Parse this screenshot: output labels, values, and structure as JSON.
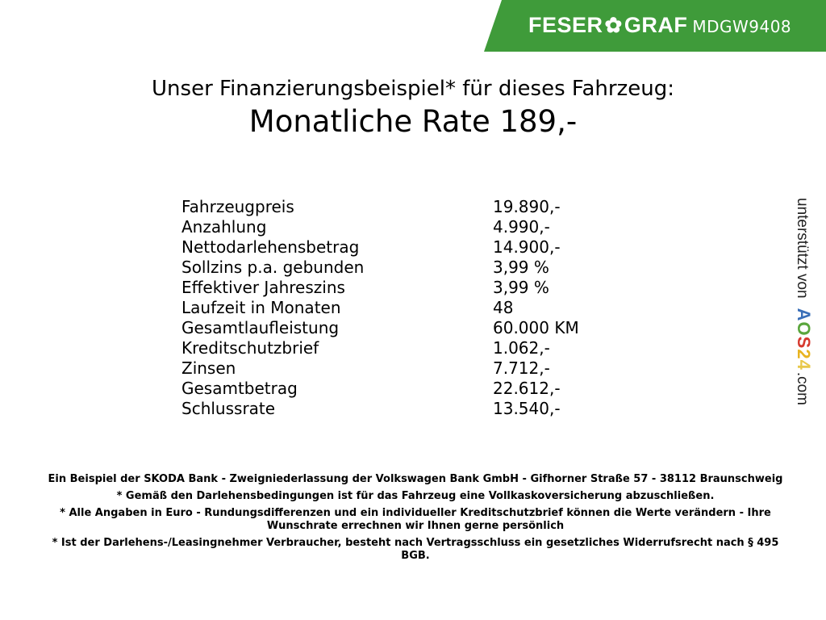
{
  "header": {
    "brand_left": "FESER",
    "brand_right": "GRAF",
    "brand_icon": "clover-icon",
    "vehicle_code": "MDGW9408",
    "brand_color": "#3f9b3a"
  },
  "title": {
    "line1": "Unser Finanzierungsbeispiel* für dieses Fahrzeug:",
    "line2": "Monatliche Rate 189,-"
  },
  "finance_rows": [
    {
      "label": "Fahrzeugpreis",
      "value": "19.890,-"
    },
    {
      "label": "Anzahlung",
      "value": "4.990,-"
    },
    {
      "label": "Nettodarlehensbetrag",
      "value": "14.900,-"
    },
    {
      "label": "Sollzins p.a. gebunden",
      "value": "3,99 %"
    },
    {
      "label": "Effektiver Jahreszins",
      "value": "3,99 %"
    },
    {
      "label": "Laufzeit in Monaten",
      "value": "48"
    },
    {
      "label": "Gesamtlaufleistung",
      "value": "60.000 KM"
    },
    {
      "label": "Kreditschutzbrief",
      "value": "1.062,-"
    },
    {
      "label": "Zinsen",
      "value": "7.712,-"
    },
    {
      "label": "Gesamtbetrag",
      "value": "22.612,-"
    },
    {
      "label": "Schlussrate",
      "value": "13.540,-"
    }
  ],
  "sidebar_credit": {
    "prefix": "unterstützt von",
    "logo": "AOS24",
    "suffix": ".com"
  },
  "footer": {
    "lines": [
      "Ein Beispiel der SKODA Bank - Zweigniederlassung der Volkswagen Bank GmbH - Gifhorner Straße 57 - 38112 Braunschweig",
      "* Gemäß den Darlehensbedingungen ist für das Fahrzeug eine Vollkaskoversicherung abzuschließen.",
      "* Alle Angaben in Euro - Rundungsdifferenzen und ein individueller Kreditschutzbrief können die Werte verändern - Ihre Wunschrate errechnen wir Ihnen gerne persönlich",
      "* Ist der Darlehens-/Leasingnehmer Verbraucher, besteht nach Vertragsschluss ein gesetzliches Widerrufsrecht nach § 495 BGB."
    ]
  }
}
